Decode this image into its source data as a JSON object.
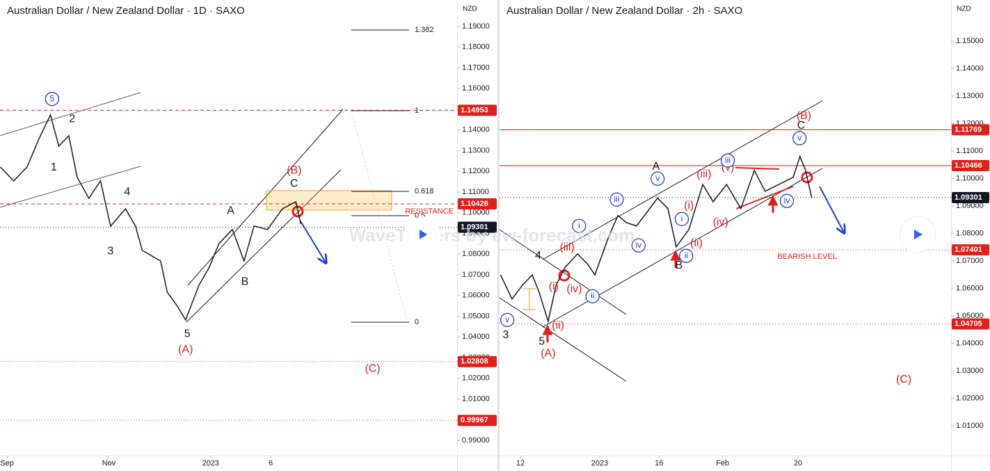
{
  "watermark": "WaveTraders by ew-forecast.com",
  "chart_data": [
    {
      "type": "line",
      "title": "Australian Dollar / New Zealand Dollar · 1D · SAXO",
      "unit": "NZD",
      "color": "#131722",
      "xlim": [
        -4.2,
        269.6
      ],
      "ylim": [
        0.9826,
        1.2028
      ],
      "xticks": [
        {
          "value": 0,
          "label": "Sep"
        },
        {
          "value": 61,
          "label": "Nov"
        },
        {
          "value": 122,
          "label": "2023"
        },
        {
          "value": 158,
          "label": "6"
        }
      ],
      "yticks": [
        {
          "value": 1.19,
          "label": "1.19000"
        },
        {
          "value": 1.18,
          "label": "1.18000"
        },
        {
          "value": 1.17,
          "label": "1.17000"
        },
        {
          "value": 1.16,
          "label": "1.16000"
        },
        {
          "value": 1.15,
          "label": "1.15000"
        },
        {
          "value": 1.14,
          "label": "1.14000"
        },
        {
          "value": 1.13,
          "label": "1.13000"
        },
        {
          "value": 1.12,
          "label": "1.12000"
        },
        {
          "value": 1.11,
          "label": "1.11000"
        },
        {
          "value": 1.1,
          "label": "1.10000"
        },
        {
          "value": 1.09,
          "label": "1.09000"
        },
        {
          "value": 1.08,
          "label": "1.08000"
        },
        {
          "value": 1.07,
          "label": "1.07000"
        },
        {
          "value": 1.06,
          "label": "1.06000"
        },
        {
          "value": 1.05,
          "label": "1.05000"
        },
        {
          "value": 1.04,
          "label": "1.04000"
        },
        {
          "value": 1.03,
          "label": "1.03000"
        },
        {
          "value": 1.02,
          "label": "1.02000"
        },
        {
          "value": 1.01,
          "label": "1.01000"
        },
        {
          "value": 1.0,
          "label": "1.00000"
        },
        {
          "value": 0.99,
          "label": "0.99000"
        }
      ],
      "x": [
        -4,
        4,
        12,
        19,
        26,
        31,
        37,
        42,
        49,
        56,
        62,
        71,
        77,
        81,
        92,
        96,
        102,
        107,
        115,
        121,
        127,
        135,
        142,
        148,
        156,
        165,
        173,
        176
      ],
      "values": [
        1.1221,
        1.1154,
        1.1221,
        1.1355,
        1.1473,
        1.1322,
        1.1372,
        1.1171,
        1.107,
        1.1154,
        1.0935,
        1.1019,
        1.0935,
        1.0818,
        1.0767,
        1.0616,
        1.0549,
        1.0482,
        1.065,
        1.0734,
        1.0851,
        1.0919,
        1.0767,
        1.0936,
        1.0919,
        1.1019,
        1.1053,
        1.0945
      ],
      "levels": [
        {
          "value": 1.14953,
          "color": "#e0201b",
          "style": "dashed"
        },
        {
          "value": 1.10428,
          "color": "#e0201b",
          "style": "dashed"
        },
        {
          "value": 1.09301,
          "color": "#131722",
          "style": "dotted"
        },
        {
          "value": 1.02808,
          "color": "#e0201b",
          "style": "dotted"
        },
        {
          "value": 0.99967,
          "color": "#e0201b",
          "style": "dotted"
        }
      ],
      "fib": [
        {
          "ratio": 1.382,
          "price": 1.1883
        },
        {
          "ratio": 1,
          "price": 1.1493
        },
        {
          "ratio": 0.618,
          "price": 1.1103
        },
        {
          "ratio": 0.5,
          "price": 1.0986
        },
        {
          "ratio": 0,
          "price": 1.0471
        }
      ],
      "annotations": [
        {
          "text": "5",
          "x": 27,
          "y": 1.155,
          "color": "#1f3fd6",
          "circled": true
        },
        {
          "text": "2",
          "x": 39,
          "y": 1.1453,
          "color": "#131722"
        },
        {
          "text": "1",
          "x": 28,
          "y": 1.1218,
          "color": "#131722"
        },
        {
          "text": "4",
          "x": 72,
          "y": 1.11,
          "color": "#131722"
        },
        {
          "text": "3",
          "x": 62,
          "y": 1.0814,
          "color": "#131722"
        },
        {
          "text": "5",
          "x": 108,
          "y": 1.0414,
          "color": "#131722"
        },
        {
          "text": "(A)",
          "x": 107,
          "y": 1.0337,
          "color": "#e0201b"
        },
        {
          "text": "A",
          "x": 134,
          "y": 1.1009,
          "color": "#131722"
        },
        {
          "text": "B",
          "x": 142.5,
          "y": 1.0666,
          "color": "#131722"
        },
        {
          "text": "(B)",
          "x": 172,
          "y": 1.1204,
          "color": "#e0201b"
        },
        {
          "text": "C",
          "x": 172,
          "y": 1.114,
          "color": "#131722"
        },
        {
          "text": "(C)",
          "x": 219,
          "y": 1.0245,
          "color": "#e0201b"
        },
        {
          "text": "RESISTANCE",
          "x": 253,
          "y": 1.1006,
          "color": "#e0201b",
          "small": true
        }
      ]
    },
    {
      "type": "line",
      "title": "Australian Dollar / New Zealand Dollar · 2h · SAXO",
      "unit": "NZD",
      "color": "#131722",
      "xlim": [
        -5.26,
        108.6
      ],
      "ylim": [
        0.9991,
        1.1649
      ],
      "xticks": [
        {
          "value": 0,
          "label": "12"
        },
        {
          "value": 20,
          "label": "2023"
        },
        {
          "value": 35,
          "label": "16"
        },
        {
          "value": 51,
          "label": "Feb"
        },
        {
          "value": 70,
          "label": "20"
        }
      ],
      "yticks": [
        {
          "value": 1.15,
          "label": "1.15000"
        },
        {
          "value": 1.14,
          "label": "1.14000"
        },
        {
          "value": 1.13,
          "label": "1.13000"
        },
        {
          "value": 1.12,
          "label": "1.12000"
        },
        {
          "value": 1.11,
          "label": "1.11000"
        },
        {
          "value": 1.1,
          "label": "1.10000"
        },
        {
          "value": 1.09,
          "label": "1.09000"
        },
        {
          "value": 1.08,
          "label": "1.08000"
        },
        {
          "value": 1.07,
          "label": "1.07000"
        },
        {
          "value": 1.06,
          "label": "1.06000"
        },
        {
          "value": 1.05,
          "label": "1.05000"
        },
        {
          "value": 1.04,
          "label": "1.04000"
        },
        {
          "value": 1.03,
          "label": "1.03000"
        },
        {
          "value": 1.02,
          "label": "1.02000"
        },
        {
          "value": 1.01,
          "label": "1.01000"
        }
      ],
      "x": [
        -5,
        -2.1,
        0.5,
        3,
        4.7,
        7,
        9,
        11.2,
        14.4,
        17,
        18.8,
        22.3,
        24.6,
        26.7,
        29.3,
        34.6,
        37.2,
        39.3,
        42.5,
        46,
        48.6,
        52,
        55.6,
        59,
        61.7,
        65.2,
        68.8,
        70.5,
        71.9,
        73.5
      ],
      "values": [
        1.0649,
        1.0561,
        1.0611,
        1.0649,
        1.0586,
        1.048,
        1.0611,
        1.0675,
        1.0725,
        1.0687,
        1.0649,
        1.0789,
        1.0865,
        1.0839,
        1.0827,
        1.0928,
        1.089,
        1.0751,
        1.0814,
        1.0978,
        1.0915,
        1.0978,
        1.089,
        1.1029,
        1.0953,
        1.0978,
        1.1004,
        1.108,
        1.1029,
        1.0928
      ],
      "levels": [
        {
          "value": 1.11769,
          "color": "#e0201b",
          "style": "solid"
        },
        {
          "value": 1.10466,
          "color": "#e0201b",
          "style": "solid"
        },
        {
          "value": 1.09301,
          "color": "#131722",
          "style": "dotted"
        },
        {
          "value": 1.07401,
          "color": "#e0201b",
          "style": "dotted"
        },
        {
          "value": 1.04705,
          "color": "#e0201b",
          "style": "dotted"
        }
      ],
      "annotations": [
        {
          "text": "3",
          "x": -3.7,
          "y": 1.0429,
          "color": "#131722"
        },
        {
          "text": "v",
          "x": -3.3,
          "y": 1.0485,
          "color": "#1f3fd6",
          "circled": true
        },
        {
          "text": "5",
          "x": 5.4,
          "y": 1.0406,
          "color": "#131722"
        },
        {
          "text": "(A)",
          "x": 7,
          "y": 1.0363,
          "color": "#e0201b"
        },
        {
          "text": "(ii)",
          "x": 9.5,
          "y": 1.0464,
          "color": "#e0201b"
        },
        {
          "text": "(i)",
          "x": 8.4,
          "y": 1.0606,
          "color": "#e0201b"
        },
        {
          "text": "(iii)",
          "x": 11.8,
          "y": 1.0748,
          "color": "#e0201b"
        },
        {
          "text": "(iv)",
          "x": 13.6,
          "y": 1.0596,
          "color": "#e0201b"
        },
        {
          "text": "4",
          "x": 4.5,
          "y": 1.0718,
          "color": "#131722"
        },
        {
          "text": "ii",
          "x": 18.2,
          "y": 1.0571,
          "color": "#1f3fd6",
          "circled": true
        },
        {
          "text": "i",
          "x": 14.8,
          "y": 1.0827,
          "color": "#1f3fd6",
          "circled": true
        },
        {
          "text": "iii",
          "x": 24.3,
          "y": 1.0923,
          "color": "#1f3fd6",
          "circled": true
        },
        {
          "text": "iv",
          "x": 29.8,
          "y": 1.0756,
          "color": "#1f3fd6",
          "circled": true
        },
        {
          "text": "v",
          "x": 34.6,
          "y": 1.0999,
          "color": "#1f3fd6",
          "circled": true
        },
        {
          "text": "A",
          "x": 34.2,
          "y": 1.1042,
          "color": "#131722"
        },
        {
          "text": "(iii)",
          "x": 46.3,
          "y": 1.1014,
          "color": "#e0201b"
        },
        {
          "text": "(v)",
          "x": 52.3,
          "y": 1.1039,
          "color": "#e0201b"
        },
        {
          "text": "iii",
          "x": 52.3,
          "y": 1.1065,
          "color": "#1f3fd6",
          "circled": true
        },
        {
          "text": "(i)",
          "x": 42.5,
          "y": 1.09,
          "color": "#e0201b"
        },
        {
          "text": "i",
          "x": 40.7,
          "y": 1.0852,
          "color": "#1f3fd6",
          "circled": true
        },
        {
          "text": "(ii)",
          "x": 44.4,
          "y": 1.0763,
          "color": "#e0201b"
        },
        {
          "text": "ii",
          "x": 41.8,
          "y": 1.0718,
          "color": "#1f3fd6",
          "circled": true
        },
        {
          "text": "B",
          "x": 40,
          "y": 1.0682,
          "color": "#131722"
        },
        {
          "text": "(iv)",
          "x": 50.5,
          "y": 1.0839,
          "color": "#e0201b"
        },
        {
          "text": "iv",
          "x": 67.2,
          "y": 1.0918,
          "color": "#1f3fd6",
          "circled": true
        },
        {
          "text": "v",
          "x": 70.4,
          "y": 1.1146,
          "color": "#1f3fd6",
          "circled": true
        },
        {
          "text": "C",
          "x": 70.8,
          "y": 1.1191,
          "color": "#131722"
        },
        {
          "text": "(B)",
          "x": 71.5,
          "y": 1.1227,
          "color": "#e0201b"
        },
        {
          "text": "BEARISH LEVEL",
          "x": 72.3,
          "y": 1.0715,
          "color": "#e0201b",
          "small": true
        },
        {
          "text": "(C)",
          "x": 96.7,
          "y": 1.0267,
          "color": "#e0201b"
        }
      ]
    }
  ]
}
